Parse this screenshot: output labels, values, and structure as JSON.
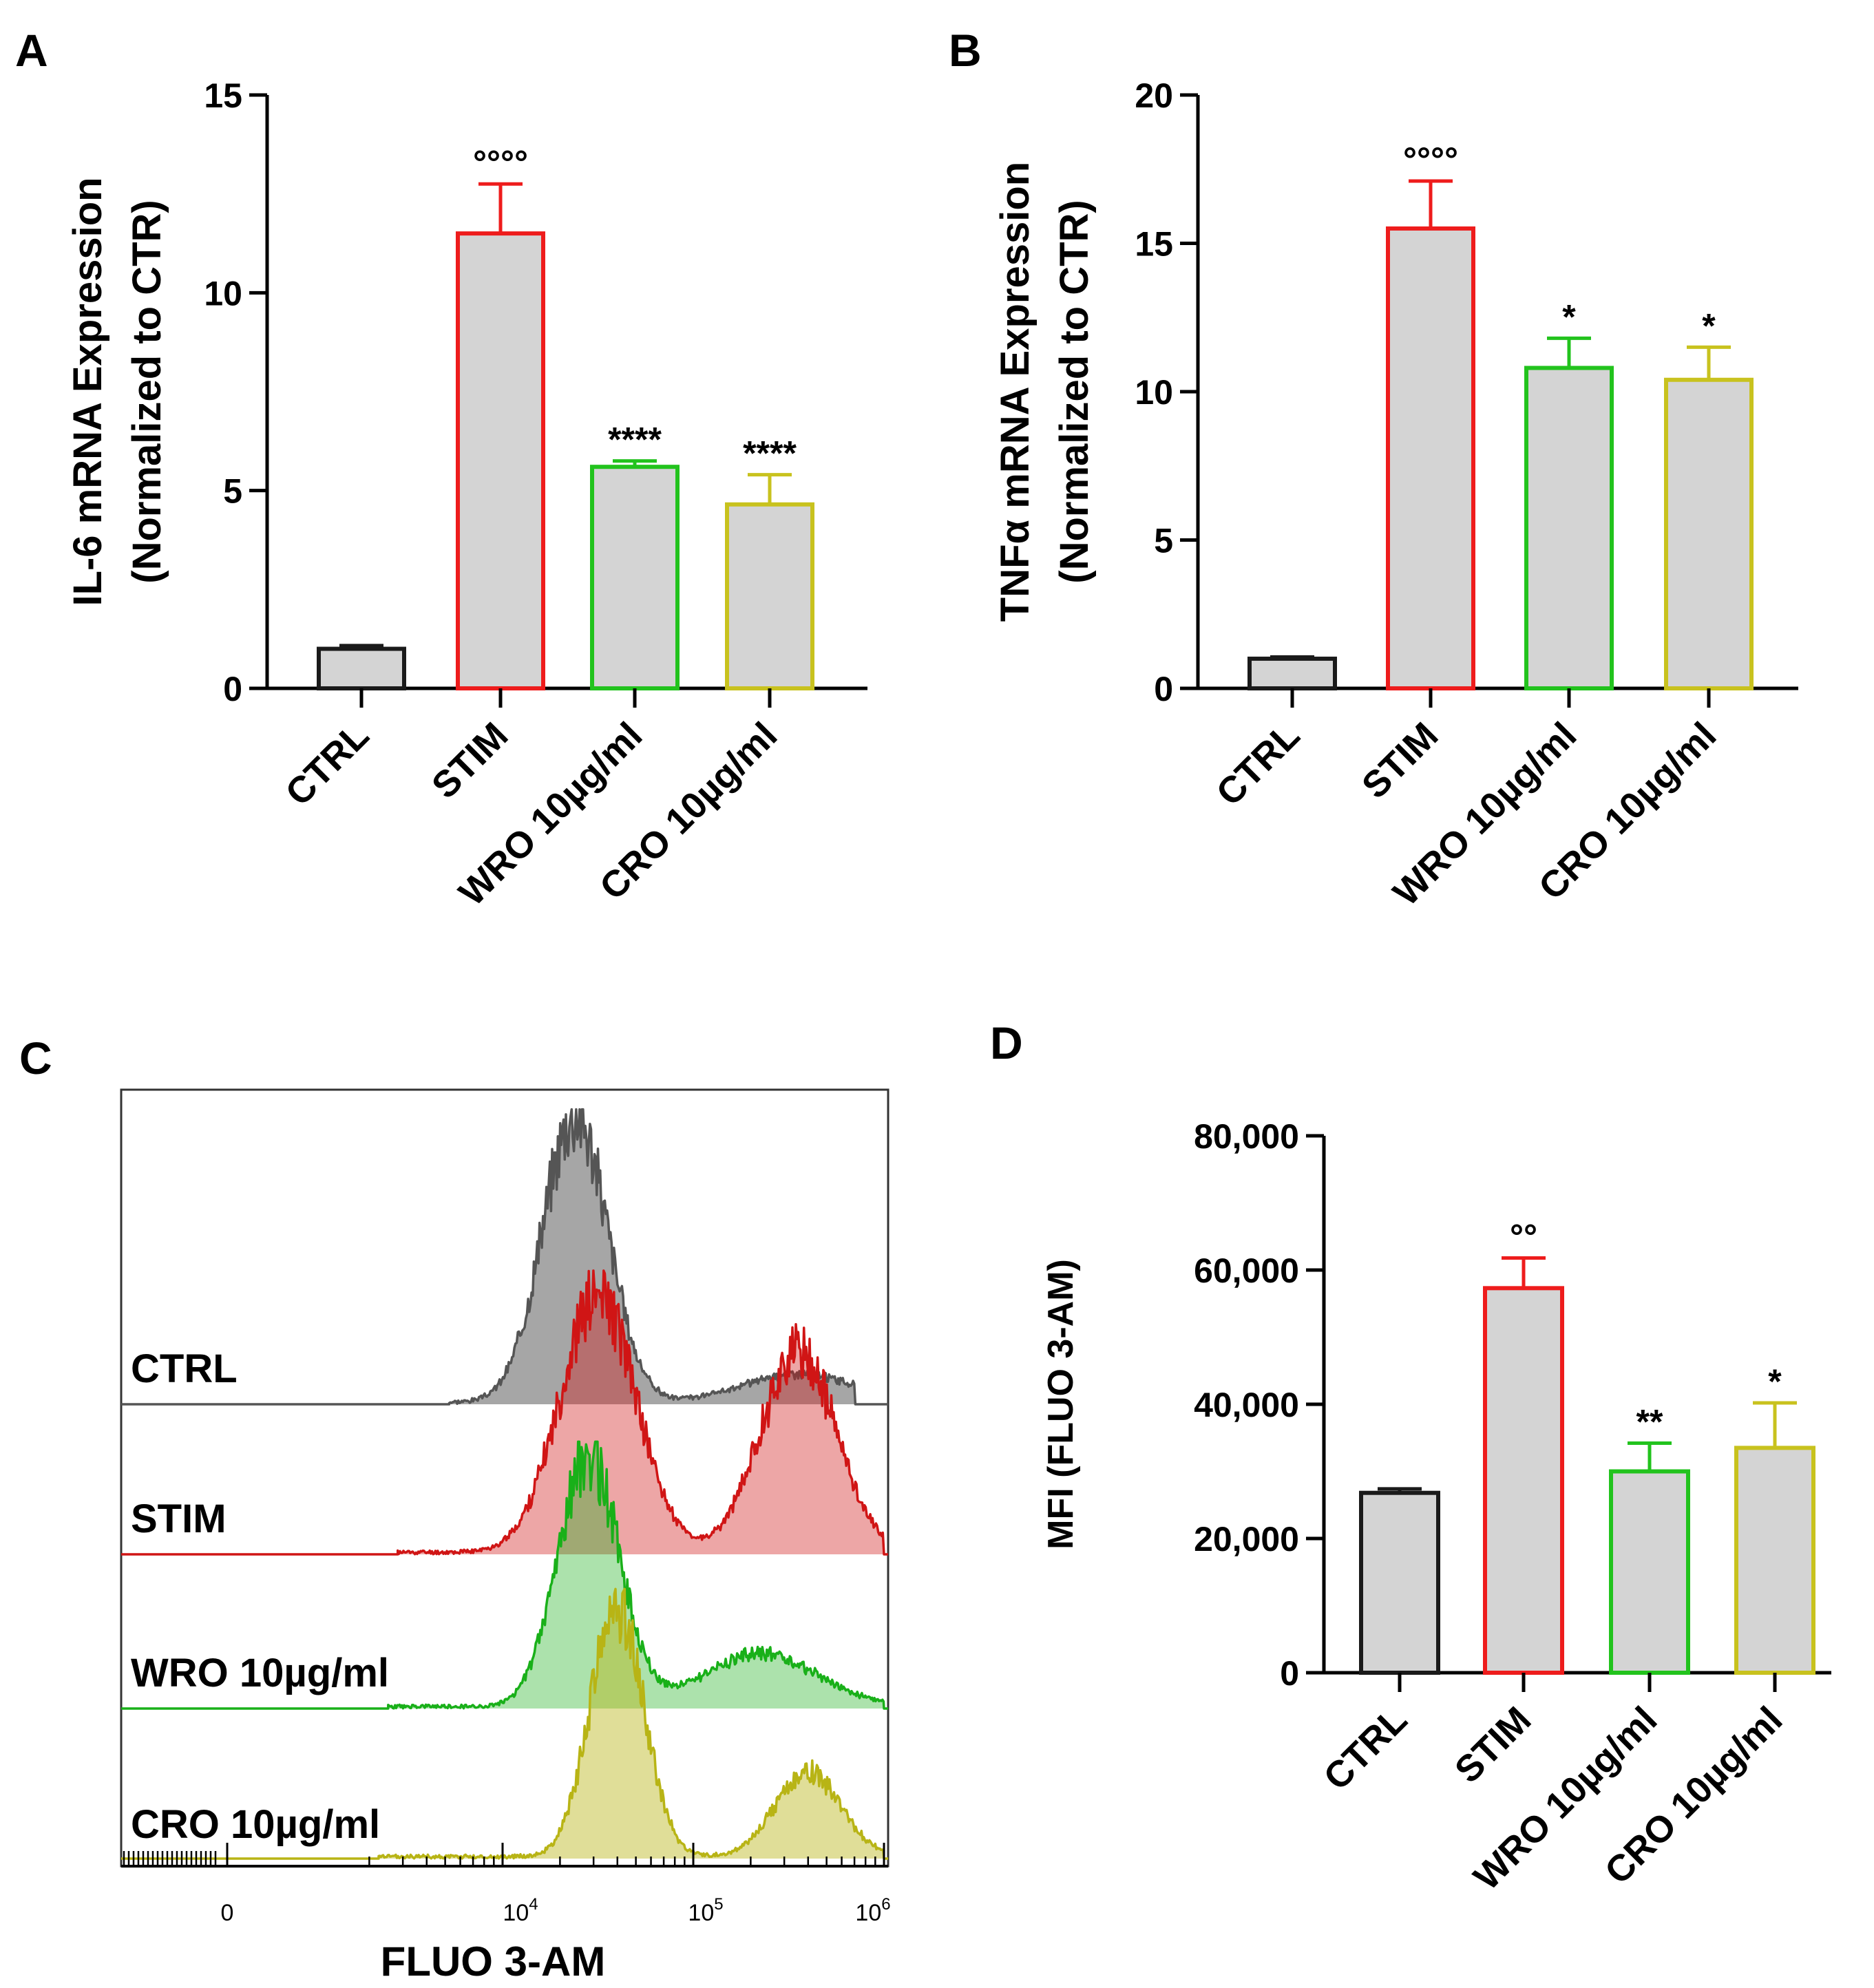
{
  "panel_labels": [
    "A",
    "B",
    "C",
    "D"
  ],
  "colors": {
    "bar_fill": "#d4d4d4",
    "CTRL": "#1a1a1a",
    "STIM": "#ee1c1c",
    "WRO": "#22c31d",
    "CRO": "#c8c21e",
    "flow_CTRL": "#555555",
    "flow_STIM": "#d01515",
    "flow_WRO": "#19b019",
    "flow_CRO": "#b8b415"
  },
  "chart_data": [
    {
      "panel": "A",
      "type": "bar",
      "categories": [
        "CTRL",
        "STIM",
        "WRO 10µg/ml",
        "CRO 10µg/ml"
      ],
      "values": [
        1.0,
        11.5,
        5.6,
        4.65
      ],
      "errors": [
        0.08,
        1.25,
        0.15,
        0.75
      ],
      "significance": [
        "",
        "°°°°",
        "****",
        "****"
      ],
      "ylabel_line1": "IL-6 mRNA Expression",
      "ylabel_line2": "(Normalized to CTR)",
      "ylim": [
        0,
        15
      ],
      "yticks": [
        0,
        5,
        10,
        15
      ],
      "ytick_labels": [
        "0",
        "5",
        "10",
        "15"
      ]
    },
    {
      "panel": "B",
      "type": "bar",
      "categories": [
        "CTRL",
        "STIM",
        "WRO 10µg/ml",
        "CRO 10µg/ml"
      ],
      "values": [
        1.0,
        15.5,
        10.8,
        10.4
      ],
      "errors": [
        0.06,
        1.6,
        1.0,
        1.1
      ],
      "significance": [
        "",
        "°°°°",
        "*",
        "*"
      ],
      "ylabel_line1": "TNFα mRNA Expression",
      "ylabel_line2": "(Normalized to CTR)",
      "ylim": [
        0,
        20
      ],
      "yticks": [
        0,
        5,
        10,
        15,
        20
      ],
      "ytick_labels": [
        "0",
        "5",
        "10",
        "15",
        "20"
      ]
    },
    {
      "panel": "C",
      "type": "area",
      "title": "",
      "xlabel": "FLUO 3-AM",
      "xscale": "log",
      "xtick_labels": [
        {
          "base": "0",
          "exp": ""
        },
        {
          "base": "10",
          "exp": "4"
        },
        {
          "base": "10",
          "exp": "5"
        },
        {
          "base": "10",
          "exp": "6"
        }
      ],
      "series": [
        {
          "name": "CTRL",
          "peaks": [
            {
              "log_mfi": 4.38,
              "height": 1.0,
              "width": 0.17
            },
            {
              "log_mfi": 5.55,
              "height": 0.1,
              "width": 0.28
            }
          ]
        },
        {
          "name": "STIM",
          "peaks": [
            {
              "log_mfi": 4.5,
              "height": 0.92,
              "width": 0.2
            },
            {
              "log_mfi": 5.55,
              "height": 0.72,
              "width": 0.2
            }
          ]
        },
        {
          "name": "WRO 10µg/ml",
          "peaks": [
            {
              "log_mfi": 4.45,
              "height": 0.96,
              "width": 0.16
            },
            {
              "log_mfi": 5.35,
              "height": 0.2,
              "width": 0.3
            }
          ]
        },
        {
          "name": "CRO 10µg/ml",
          "peaks": [
            {
              "log_mfi": 4.6,
              "height": 0.95,
              "width": 0.14
            },
            {
              "log_mfi": 5.6,
              "height": 0.32,
              "width": 0.17
            }
          ]
        }
      ]
    },
    {
      "panel": "D",
      "type": "bar",
      "categories": [
        "CTRL",
        "STIM",
        "WRO 10µg/ml",
        "CRO 10µg/ml"
      ],
      "values": [
        26800,
        57300,
        30000,
        33500
      ],
      "errors": [
        600,
        4500,
        4200,
        6700
      ],
      "significance": [
        "",
        "°°",
        "**",
        "*"
      ],
      "ylabel": "MFI (FLUO 3-AM)",
      "ylim": [
        0,
        80000
      ],
      "yticks": [
        0,
        20000,
        40000,
        60000,
        80000
      ],
      "ytick_labels": [
        "0",
        "20,000",
        "40,000",
        "60,000",
        "80,000"
      ]
    }
  ]
}
